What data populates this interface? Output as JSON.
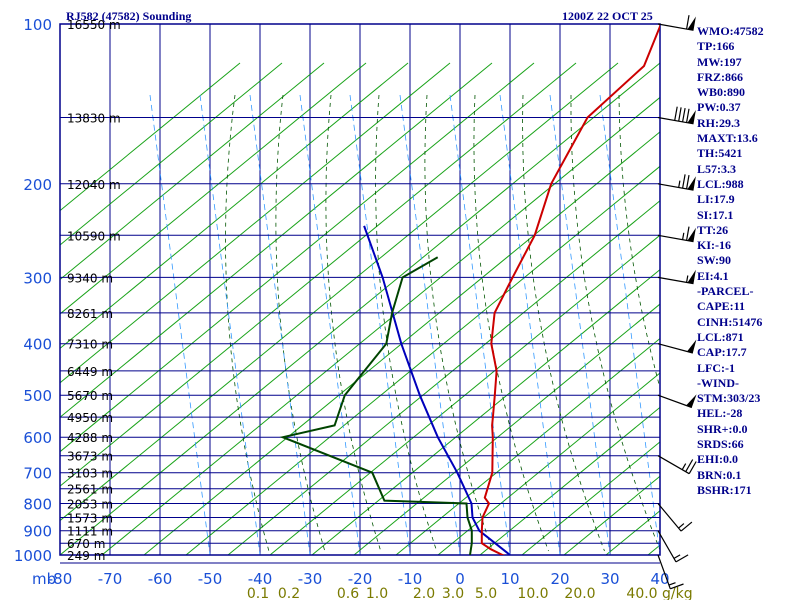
{
  "header": {
    "station": "RJ582 (47582) Sounding",
    "valid_time": "1200Z 22 OCT 25"
  },
  "indices": [
    "WMO:47582",
    "TP:166",
    "MW:197",
    "FRZ:866",
    "WB0:890",
    "PW:0.37",
    "RH:29.3",
    "MAXT:13.6",
    "TH:5421",
    "L57:3.3",
    "LCL:988",
    "LI:17.9",
    "SI:17.1",
    "TT:26",
    "KI:-16",
    "SW:90",
    "EI:4.1",
    "-PARCEL-",
    "CAPE:11",
    "CINH:51476",
    "LCL:871",
    "CAP:17.7",
    "LFC:-1",
    "-WIND-",
    "STM:303/23",
    "HEL:-28",
    "SHR+:0.0",
    "SRDS:66",
    "EHI:0.0",
    "BRN:0.1",
    "BSHR:171"
  ],
  "chart_data": {
    "type": "skew-t",
    "colors": {
      "frame": "#00008b",
      "isotherm": "#00008b",
      "dry_adiabat": "#009900",
      "moist_adiabat": "#005500",
      "mixing_ratio": "#3399ff",
      "temperature": "#cc0000",
      "dewpoint": "#004400",
      "parcel": "#0000bb",
      "mixing_ratio_label": "#7a7a00"
    },
    "pressure_ticks": [
      "100",
      "200",
      "300",
      "400",
      "500",
      "600",
      "700",
      "800",
      "900",
      "1000"
    ],
    "pressure_axis_label": "mb",
    "temperature_ticks": [
      "-80",
      "-70",
      "-60",
      "-50",
      "-40",
      "-30",
      "-20",
      "-10",
      "0",
      "10",
      "20",
      "30",
      "40"
    ],
    "mixing_ratio_ticks": [
      "0.1",
      "0.2",
      "0.6",
      "1.0",
      "2.0",
      "3.0",
      "5.0",
      "10.0",
      "20.0",
      "40.0"
    ],
    "mixing_ratio_unit": "g/kg",
    "height_labels": [
      {
        "p": 100,
        "label": "16550 m"
      },
      {
        "p": 150,
        "label": "13830 m"
      },
      {
        "p": 200,
        "label": "12040 m"
      },
      {
        "p": 250,
        "label": "10590 m"
      },
      {
        "p": 300,
        "label": "9340 m"
      },
      {
        "p": 350,
        "label": "8261 m"
      },
      {
        "p": 400,
        "label": "7310 m"
      },
      {
        "p": 450,
        "label": "6449 m"
      },
      {
        "p": 500,
        "label": "5670 m"
      },
      {
        "p": 550,
        "label": "4950 m"
      },
      {
        "p": 600,
        "label": "4288 m"
      },
      {
        "p": 650,
        "label": "3673 m"
      },
      {
        "p": 700,
        "label": "3103 m"
      },
      {
        "p": 750,
        "label": "2561 m"
      },
      {
        "p": 800,
        "label": "2053 m"
      },
      {
        "p": 850,
        "label": "1573 m"
      },
      {
        "p": 900,
        "label": "1111 m"
      },
      {
        "p": 950,
        "label": "670 m"
      },
      {
        "p": 1000,
        "label": "249 m"
      }
    ],
    "temperature": [
      {
        "p": 1015,
        "t": 10
      },
      {
        "p": 1000,
        "t": 7.5
      },
      {
        "p": 975,
        "t": 4
      },
      {
        "p": 950,
        "t": 1
      },
      {
        "p": 900,
        "t": -1.5
      },
      {
        "p": 850,
        "t": -4
      },
      {
        "p": 800,
        "t": -5.5
      },
      {
        "p": 780,
        "t": -7.5
      },
      {
        "p": 700,
        "t": -11
      },
      {
        "p": 600,
        "t": -18
      },
      {
        "p": 570,
        "t": -20.5
      },
      {
        "p": 550,
        "t": -22
      },
      {
        "p": 500,
        "t": -26
      },
      {
        "p": 450,
        "t": -30.5
      },
      {
        "p": 400,
        "t": -37
      },
      {
        "p": 350,
        "t": -42.5
      },
      {
        "p": 300,
        "t": -46
      },
      {
        "p": 250,
        "t": -50
      },
      {
        "p": 200,
        "t": -57
      },
      {
        "p": 150,
        "t": -63
      },
      {
        "p": 120,
        "t": -62
      },
      {
        "p": 100,
        "t": -67
      }
    ],
    "dewpoint": [
      {
        "p": 1000,
        "t": 1
      },
      {
        "p": 950,
        "t": -1
      },
      {
        "p": 900,
        "t": -3.5
      },
      {
        "p": 850,
        "t": -7
      },
      {
        "p": 800,
        "t": -10
      },
      {
        "p": 790,
        "t": -27
      },
      {
        "p": 700,
        "t": -35
      },
      {
        "p": 600,
        "t": -60
      },
      {
        "p": 570,
        "t": -52
      },
      {
        "p": 500,
        "t": -56
      },
      {
        "p": 400,
        "t": -58
      },
      {
        "p": 350,
        "t": -63
      },
      {
        "p": 300,
        "t": -68
      },
      {
        "p": 275,
        "t": -65
      }
    ],
    "parcel": [
      {
        "p": 1000,
        "t": 9
      },
      {
        "p": 900,
        "t": -2
      },
      {
        "p": 850,
        "t": -6
      },
      {
        "p": 800,
        "t": -9
      },
      {
        "p": 700,
        "t": -18
      },
      {
        "p": 600,
        "t": -29
      },
      {
        "p": 500,
        "t": -41
      },
      {
        "p": 400,
        "t": -55
      },
      {
        "p": 300,
        "t": -72
      },
      {
        "p": 240,
        "t": -86
      }
    ],
    "wind_barbs": [
      {
        "p": 100,
        "dir": 280,
        "spd": 60
      },
      {
        "p": 150,
        "dir": 280,
        "spd": 90
      },
      {
        "p": 200,
        "dir": 280,
        "spd": 75
      },
      {
        "p": 250,
        "dir": 280,
        "spd": 65
      },
      {
        "p": 300,
        "dir": 280,
        "spd": 55
      },
      {
        "p": 400,
        "dir": 285,
        "spd": 50
      },
      {
        "p": 500,
        "dir": 290,
        "spd": 50
      },
      {
        "p": 650,
        "dir": 300,
        "spd": 25
      },
      {
        "p": 800,
        "dir": 320,
        "spd": 15
      },
      {
        "p": 900,
        "dir": 330,
        "spd": 15
      },
      {
        "p": 1000,
        "dir": 340,
        "spd": 15
      }
    ]
  }
}
